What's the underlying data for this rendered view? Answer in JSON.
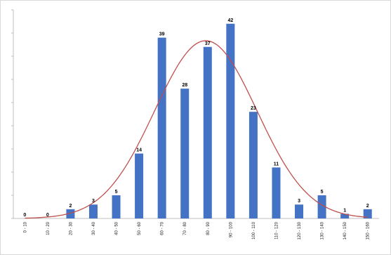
{
  "chart_data": {
    "type": "bar",
    "categories": [
      "0 - 10",
      "10 - 20",
      "20 - 30",
      "30 - 40",
      "40 - 50",
      "50 - 60",
      "60 - 70",
      "70 - 80",
      "80 - 90",
      "90 - 100",
      "100 - 110",
      "110 - 120",
      "120 - 130",
      "130 - 140",
      "140 - 150",
      "150 - 160"
    ],
    "values": [
      0,
      0,
      2,
      3,
      5,
      14,
      39,
      28,
      37,
      42,
      23,
      11,
      3,
      5,
      1,
      2
    ],
    "overlay": "normal distribution curve",
    "title": "",
    "xlabel": "",
    "ylabel": "",
    "ylim": [
      0,
      45
    ],
    "grid": false,
    "legend": "none",
    "colors": {
      "bar": "#4472c4",
      "curve": "#c0504d",
      "axis": "#bfbfbf"
    }
  }
}
